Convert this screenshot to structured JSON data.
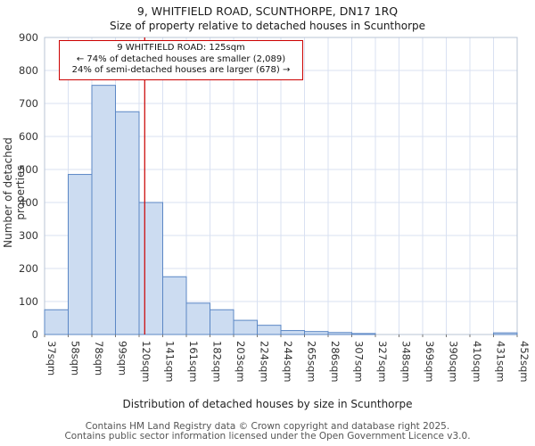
{
  "title": "9, WHITFIELD ROAD, SCUNTHORPE, DN17 1RQ",
  "subtitle": "Size of property relative to detached houses in Scunthorpe",
  "annotation": {
    "lines": [
      "9 WHITFIELD ROAD: 125sqm",
      "← 74% of detached houses are smaller (2,089)",
      "24% of semi-detached houses are larger (678) →"
    ]
  },
  "footer": {
    "line1": "Contains HM Land Registry data © Crown copyright and database right 2025.",
    "line2": "Contains public sector information licensed under the Open Government Licence v3.0."
  },
  "chart_data": {
    "type": "bar",
    "title": "9, WHITFIELD ROAD, SCUNTHORPE, DN17 1RQ",
    "subtitle": "Size of property relative to detached houses in Scunthorpe",
    "xlabel": "Distribution of detached houses by size in Scunthorpe",
    "ylabel": "Number of detached properties",
    "ylim": [
      0,
      900
    ],
    "ytick_step": 100,
    "grid": true,
    "tick_labels": [
      "37sqm",
      "58sqm",
      "78sqm",
      "99sqm",
      "120sqm",
      "141sqm",
      "161sqm",
      "182sqm",
      "203sqm",
      "224sqm",
      "244sqm",
      "265sqm",
      "286sqm",
      "307sqm",
      "327sqm",
      "348sqm",
      "369sqm",
      "390sqm",
      "410sqm",
      "431sqm",
      "452sqm"
    ],
    "tick_values": [
      37,
      58,
      78,
      99,
      120,
      141,
      161,
      182,
      203,
      224,
      244,
      265,
      286,
      307,
      327,
      348,
      369,
      390,
      410,
      431,
      452
    ],
    "values": [
      75,
      485,
      755,
      675,
      400,
      175,
      95,
      75,
      43,
      28,
      12,
      9,
      6,
      3,
      0,
      0,
      0,
      0,
      0,
      5
    ],
    "marker": {
      "value": 125,
      "label": "9 WHITFIELD ROAD: 125sqm"
    },
    "colors": {
      "bar_fill": "#ccdcf1",
      "bar_stroke": "#5b87c5",
      "grid_line": "#d9e1f2",
      "plot_border": "#b9c4d6",
      "marker_line": "#cc1111",
      "tick_text": "#333333"
    }
  }
}
